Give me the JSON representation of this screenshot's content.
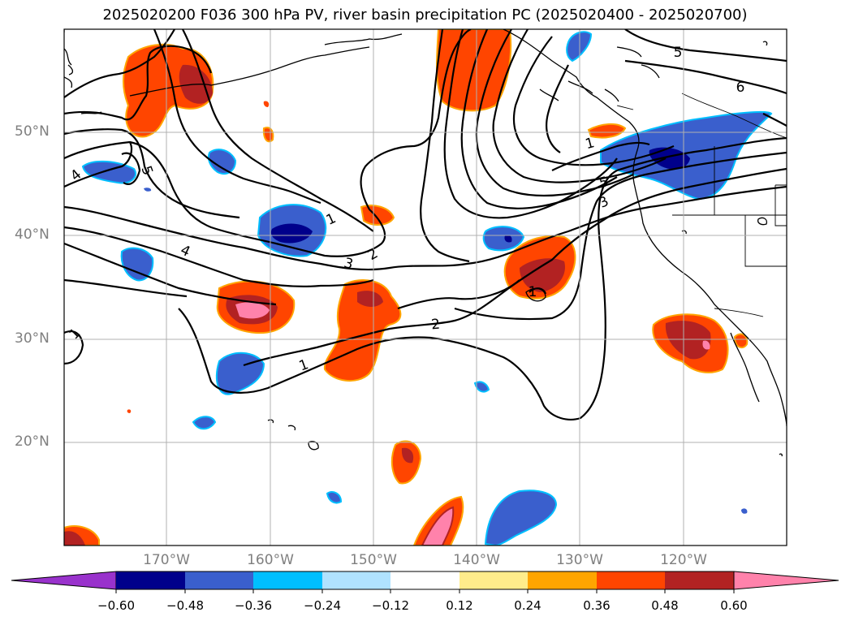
{
  "title": "2025020200 F036 300 hPa PV, river basin precipitation PC (2025020400 - 2025020700)",
  "latitude_labels": [
    "50°N",
    "40°N",
    "30°N",
    "20°N"
  ],
  "longitude_labels": [
    "170°W",
    "160°W",
    "150°W",
    "140°W",
    "130°W",
    "120°W"
  ],
  "pv_contour_labels": [
    "5",
    "6",
    "5",
    "4",
    "1",
    "2",
    "3",
    "4",
    "1",
    "2",
    "1",
    "1",
    "5",
    "3",
    "1"
  ],
  "colorbar": {
    "tick_labels": [
      "−0.60",
      "−0.48",
      "−0.36",
      "−0.24",
      "−0.12",
      "0.12",
      "0.24",
      "0.36",
      "0.48",
      "0.60"
    ],
    "colors": {
      "under": "#9932cc",
      "bins": [
        "#00008b",
        "#3a5fcd",
        "#00bfff",
        "#b0e2ff",
        "#ffffff",
        "#ffec8b",
        "#ffa500",
        "#ff4500",
        "#b22222",
        "#ff82ab"
      ]
    }
  }
}
